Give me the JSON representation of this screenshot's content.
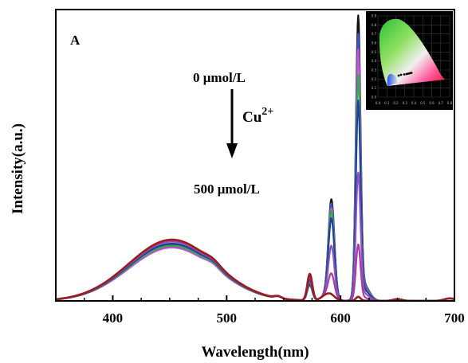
{
  "chart_data": {
    "type": "line",
    "panel_label": "A",
    "xlabel": "Wavelength(nm)",
    "ylabel": "Intensity(a.u.)",
    "xlim": [
      350,
      700
    ],
    "x_ticks": [
      400,
      500,
      600,
      700
    ],
    "y_ticks_shown": false,
    "grid": false,
    "annotations": {
      "start_label": "0 μmol/L",
      "end_label": "500 μmol/L",
      "ion_label": "Cu",
      "ion_charge": "2+",
      "arrow_direction": "down"
    },
    "inset": {
      "type": "CIE chromaticity diagram",
      "x_ticks": [
        "0.0",
        "0.1",
        "0.2",
        "0.3",
        "0.4",
        "0.5",
        "0.6",
        "0.7",
        "0.8"
      ],
      "y_ticks": [
        "0.9",
        "0.8",
        "0.7",
        "0.6",
        "0.5",
        "0.4",
        "0.3",
        "0.2",
        "0.1",
        "0.0"
      ]
    },
    "series_colors": [
      "#111111",
      "#3b4fc9",
      "#c057c8",
      "#35a855",
      "#1f3f9a",
      "#8a55c0",
      "#b03aa0",
      "#9a1c1c"
    ],
    "series": [
      {
        "relative_intensity": {
          "blue_band_452": 0.57,
          "peak_573": 0.16,
          "peak_593": 0.97,
          "peak_615": 2.78
        }
      },
      {
        "relative_intensity": {
          "blue_band_452": 0.55,
          "peak_573": 0.18,
          "peak_593": 0.93,
          "peak_615": 2.6
        }
      },
      {
        "relative_intensity": {
          "blue_band_452": 0.54,
          "peak_573": 0.19,
          "peak_593": 0.88,
          "peak_615": 2.45
        }
      },
      {
        "relative_intensity": {
          "blue_band_452": 0.56,
          "peak_573": 0.2,
          "peak_593": 0.85,
          "peak_615": 2.2
        }
      },
      {
        "relative_intensity": {
          "blue_band_452": 0.58,
          "peak_573": 0.21,
          "peak_593": 0.78,
          "peak_615": 1.95
        }
      },
      {
        "relative_intensity": {
          "blue_band_452": 0.6,
          "peak_573": 0.24,
          "peak_593": 0.5,
          "peak_615": 1.25
        }
      },
      {
        "relative_intensity": {
          "blue_band_452": 0.61,
          "peak_573": 0.25,
          "peak_593": 0.22,
          "peak_615": 0.55
        }
      },
      {
        "relative_intensity": {
          "blue_band_452": 0.62,
          "peak_573": 0.27,
          "peak_593": 0.01,
          "peak_615": 0.04
        }
      }
    ]
  }
}
